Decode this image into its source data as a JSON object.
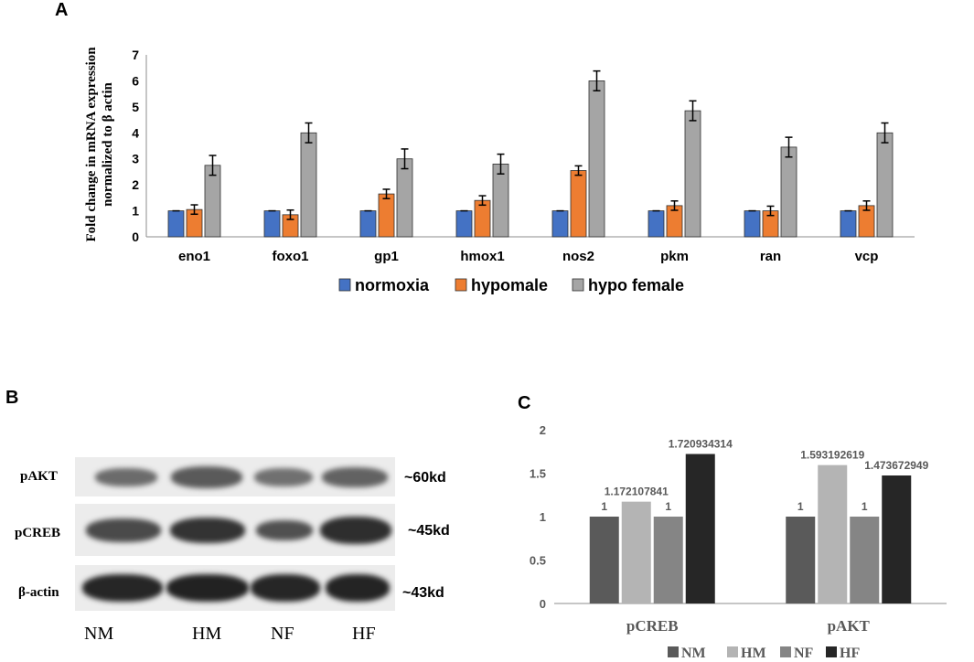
{
  "panels": {
    "a": "A",
    "b": "B",
    "c": "C"
  },
  "chart_data": [
    {
      "type": "bar",
      "ylabel": "Fold change in mRNA expression normalized to β actin",
      "ylabel_lines": [
        "Fold change in mRNA expression",
        "normalized to β actin"
      ],
      "xlabel": "",
      "ylim": [
        0,
        7
      ],
      "yticks": [
        0,
        1,
        2,
        3,
        4,
        5,
        6,
        7
      ],
      "grid": false,
      "legend_position": "bottom",
      "categories": [
        "eno1",
        "foxo1",
        "gp1",
        "hmox1",
        "nos2",
        "pkm",
        "ran",
        "vcp"
      ],
      "series": [
        {
          "name": "normoxia",
          "color": "#4472c4",
          "values": [
            1,
            1,
            1,
            1,
            1,
            1,
            1,
            1
          ],
          "errors": [
            0,
            0,
            0,
            0,
            0,
            0,
            0,
            0
          ]
        },
        {
          "name": "hypomale",
          "color": "#ed7d31",
          "values": [
            1.05,
            0.85,
            1.65,
            1.4,
            2.55,
            1.2,
            1.0,
            1.2
          ],
          "errors": [
            0.18,
            0.18,
            0.18,
            0.18,
            0.18,
            0.18,
            0.18,
            0.18
          ]
        },
        {
          "name": "hypo female",
          "color": "#a5a5a5",
          "values": [
            2.75,
            4.0,
            3.0,
            2.8,
            6.0,
            4.85,
            3.45,
            4.0
          ],
          "errors": [
            0.38,
            0.38,
            0.38,
            0.38,
            0.38,
            0.38,
            0.38,
            0.38
          ]
        }
      ]
    },
    {
      "type": "bar",
      "xlabel": "",
      "ylabel": "",
      "ylim": [
        0,
        2
      ],
      "yticks": [
        "0",
        "0.5",
        "1",
        "1.5",
        "2"
      ],
      "ytick_values": [
        0,
        0.5,
        1,
        1.5,
        2
      ],
      "grid": false,
      "legend_position": "bottom",
      "categories": [
        "pCREB",
        "pAKT"
      ],
      "series": [
        {
          "name": "NM",
          "color": "#5a5a5a",
          "values": [
            1,
            1
          ],
          "labels": [
            "1",
            "1"
          ]
        },
        {
          "name": "HM",
          "color": "#b4b4b4",
          "values": [
            1.172107841,
            1.593192619
          ],
          "labels": [
            "1.172107841",
            "1.593192619"
          ]
        },
        {
          "name": "NF",
          "color": "#858585",
          "values": [
            1,
            1
          ],
          "labels": [
            "1",
            "1"
          ]
        },
        {
          "name": "HF",
          "color": "#262626",
          "values": [
            1.720934314,
            1.473672949
          ],
          "labels": [
            "1.720934314",
            "1.473672949"
          ]
        }
      ]
    }
  ],
  "blot": {
    "rows": [
      {
        "label": "pAKT",
        "size": "~60kd"
      },
      {
        "label": "pCREB",
        "size": "~45kd"
      },
      {
        "label": "β-actin",
        "size": "~43kd"
      }
    ],
    "lanes": [
      "NM",
      "HM",
      "NF",
      "HF"
    ]
  }
}
